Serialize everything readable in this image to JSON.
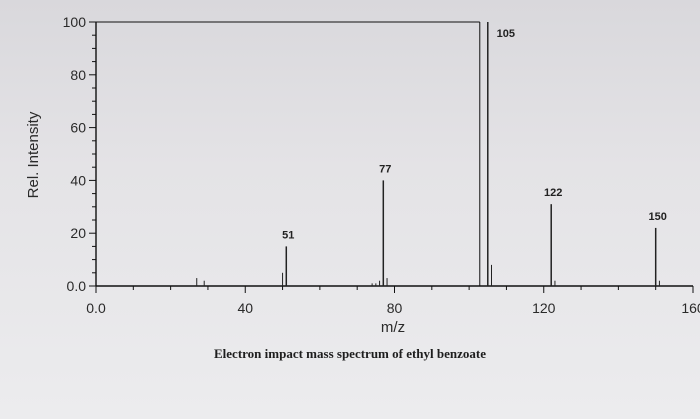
{
  "chart_data": {
    "type": "bar",
    "title": "Electron impact mass spectrum of ethyl benzoate",
    "xlabel": "m/z",
    "ylabel": "Rel. Intensity",
    "xlim": [
      0,
      160
    ],
    "ylim": [
      0,
      100
    ],
    "x_ticks": [
      {
        "value": 0,
        "label": "0.0"
      },
      {
        "value": 40,
        "label": "40"
      },
      {
        "value": 80,
        "label": "80"
      },
      {
        "value": 120,
        "label": "120"
      },
      {
        "value": 160,
        "label": "160"
      }
    ],
    "y_ticks": [
      {
        "value": 0,
        "label": "0.0"
      },
      {
        "value": 20,
        "label": "20"
      },
      {
        "value": 40,
        "label": "40"
      },
      {
        "value": 60,
        "label": "60"
      },
      {
        "value": 80,
        "label": "80"
      },
      {
        "value": 100,
        "label": "100"
      }
    ],
    "peaks": [
      {
        "mz": 27,
        "intensity": 3
      },
      {
        "mz": 29,
        "intensity": 2
      },
      {
        "mz": 50,
        "intensity": 5
      },
      {
        "mz": 51,
        "intensity": 15
      },
      {
        "mz": 74,
        "intensity": 1
      },
      {
        "mz": 75,
        "intensity": 1
      },
      {
        "mz": 76,
        "intensity": 2
      },
      {
        "mz": 77,
        "intensity": 40
      },
      {
        "mz": 78,
        "intensity": 3
      },
      {
        "mz": 105,
        "intensity": 100
      },
      {
        "mz": 106,
        "intensity": 8
      },
      {
        "mz": 122,
        "intensity": 31
      },
      {
        "mz": 123,
        "intensity": 2
      },
      {
        "mz": 150,
        "intensity": 22
      },
      {
        "mz": 151,
        "intensity": 2
      }
    ],
    "labeled_peaks": [
      {
        "mz": 51,
        "label": "51"
      },
      {
        "mz": 77,
        "label": "77"
      },
      {
        "mz": 105,
        "label": "105"
      },
      {
        "mz": 122,
        "label": "122"
      },
      {
        "mz": 150,
        "label": "150"
      }
    ],
    "grid": false,
    "colors": {
      "frame": "#111111",
      "peak": "#222222",
      "background": "#e6e5e8"
    }
  }
}
